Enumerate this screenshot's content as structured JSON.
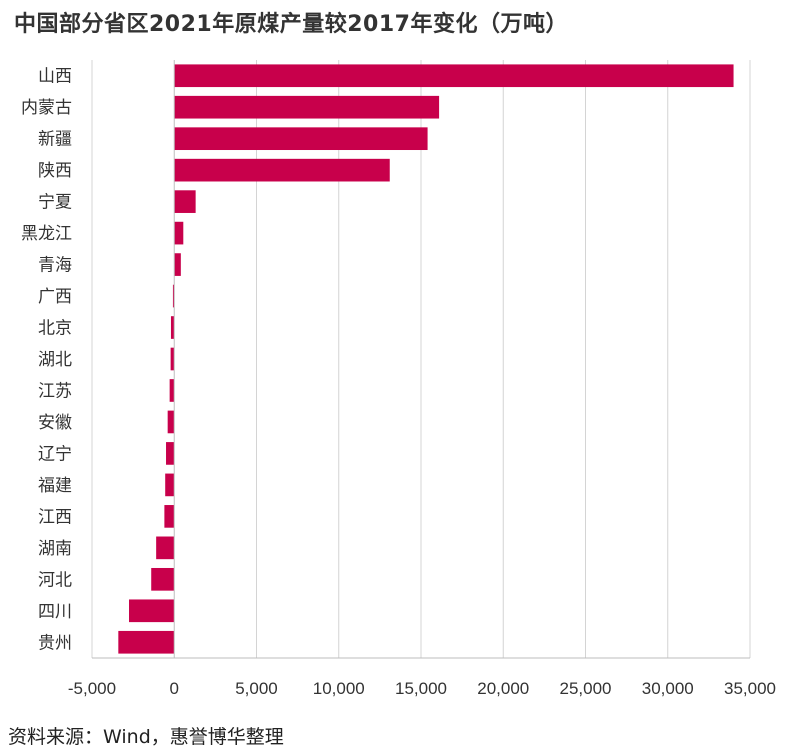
{
  "source": "资料来源：Wind，惠誉博华整理",
  "chart_data": {
    "type": "bar",
    "orientation": "horizontal",
    "title": "中国部分省区2021年原煤产量较2017年变化（万吨）",
    "xlabel": "",
    "ylabel": "",
    "xlim": [
      -5000,
      35000
    ],
    "xticks": [
      -5000,
      0,
      5000,
      10000,
      15000,
      20000,
      25000,
      30000,
      35000
    ],
    "xtick_labels": [
      "-5,000",
      "0",
      "5,000",
      "10,000",
      "15,000",
      "20,000",
      "25,000",
      "30,000",
      "35,000"
    ],
    "grid": "vertical",
    "bar_color": "#C8004B",
    "categories": [
      "山西",
      "内蒙古",
      "新疆",
      "陕西",
      "宁夏",
      "黑龙江",
      "青海",
      "广西",
      "北京",
      "湖北",
      "江苏",
      "安徽",
      "辽宁",
      "福建",
      "江西",
      "湖南",
      "河北",
      "四川",
      "贵州"
    ],
    "values": [
      34000,
      16100,
      15400,
      13100,
      1300,
      550,
      400,
      -80,
      -200,
      -220,
      -280,
      -400,
      -500,
      -550,
      -600,
      -1100,
      -1400,
      -2750,
      -3400
    ]
  }
}
